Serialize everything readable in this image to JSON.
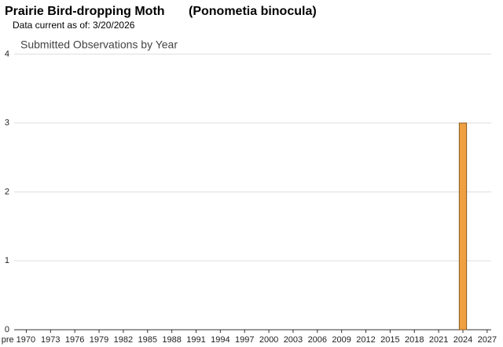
{
  "chart_data": {
    "type": "bar",
    "title": "Prairie Bird-dropping Moth",
    "scientific_name": "(Ponometia binocula)",
    "subtitle": "Data current as of: 3/20/2026",
    "chart_title": "Submitted Observations by Year",
    "x": [
      2024
    ],
    "values": [
      3
    ],
    "color": "#f0a040",
    "edge_color": "#8a5a1e",
    "xlim": [
      1968.5,
      2027.5
    ],
    "xticks": [
      {
        "value": 1970,
        "label": "pre 1970"
      },
      1973,
      1976,
      1979,
      1982,
      1985,
      1988,
      1991,
      1994,
      1997,
      2000,
      2003,
      2006,
      2009,
      2012,
      2015,
      2018,
      2021,
      2024,
      2027
    ],
    "ylim": [
      0,
      4
    ],
    "yticks": [
      0,
      1,
      2,
      3,
      4
    ],
    "grid": true
  }
}
